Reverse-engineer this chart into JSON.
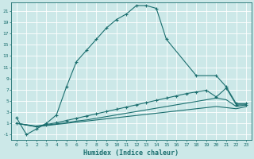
{
  "xlabel": "Humidex (Indice chaleur)",
  "bg_color": "#cce8e8",
  "grid_color": "#ffffff",
  "line_color": "#1a6e6e",
  "xlim": [
    -0.5,
    23.5
  ],
  "ylim": [
    -2,
    22.5
  ],
  "xticks": [
    0,
    1,
    2,
    3,
    4,
    5,
    6,
    7,
    8,
    9,
    10,
    11,
    12,
    13,
    14,
    15,
    16,
    17,
    18,
    19,
    20,
    21,
    22,
    23
  ],
  "yticks": [
    -1,
    1,
    3,
    5,
    7,
    9,
    11,
    13,
    15,
    17,
    19,
    21
  ],
  "line1_x": [
    0,
    1,
    2,
    3,
    4,
    5,
    6,
    7,
    8,
    9,
    10,
    11,
    12,
    13,
    14,
    15,
    18,
    20,
    21,
    22,
    23
  ],
  "line1_y": [
    2,
    -1,
    0,
    1,
    2.5,
    7.5,
    12,
    14,
    16,
    18,
    19.5,
    20.5,
    22,
    22,
    21.5,
    16,
    9.5,
    9.5,
    7.5,
    4.5,
    4.5
  ],
  "line1_markers": [
    0,
    1,
    2,
    3,
    4,
    5,
    6,
    7,
    8,
    9,
    10,
    11,
    12,
    13,
    14,
    15,
    18,
    20,
    21,
    22,
    23
  ],
  "line2_x": [
    0,
    2,
    3,
    4,
    5,
    6,
    7,
    8,
    9,
    10,
    11,
    12,
    13,
    14,
    15,
    16,
    17,
    18,
    19,
    20,
    21,
    22,
    23
  ],
  "line2_y": [
    1,
    0.5,
    0.8,
    1.1,
    1.5,
    1.9,
    2.3,
    2.7,
    3.1,
    3.5,
    3.9,
    4.3,
    4.7,
    5.1,
    5.5,
    5.9,
    6.3,
    6.6,
    6.9,
    5.7,
    7.3,
    4.3,
    4.3
  ],
  "line2_markers": [
    0,
    2,
    3,
    4,
    5,
    6,
    7,
    8,
    9,
    10,
    11,
    12,
    13,
    14,
    15,
    16,
    17,
    18,
    19,
    20,
    21,
    22,
    23
  ],
  "line3_x": [
    0,
    2,
    3,
    4,
    5,
    6,
    7,
    8,
    9,
    10,
    11,
    12,
    13,
    14,
    15,
    16,
    17,
    18,
    19,
    20,
    21,
    22,
    23
  ],
  "line3_y": [
    1,
    0.4,
    0.7,
    0.9,
    1.1,
    1.4,
    1.6,
    1.9,
    2.2,
    2.5,
    2.8,
    3.1,
    3.4,
    3.7,
    4.0,
    4.3,
    4.6,
    4.9,
    5.2,
    5.5,
    5.2,
    4.0,
    4.3
  ],
  "line4_x": [
    0,
    2,
    3,
    4,
    5,
    6,
    7,
    8,
    9,
    10,
    11,
    12,
    13,
    14,
    15,
    16,
    17,
    18,
    19,
    20,
    21,
    22,
    23
  ],
  "line4_y": [
    1,
    0.4,
    0.6,
    0.8,
    1.0,
    1.2,
    1.4,
    1.6,
    1.8,
    2.0,
    2.2,
    2.4,
    2.6,
    2.8,
    3.0,
    3.2,
    3.4,
    3.6,
    3.8,
    4.0,
    3.8,
    3.6,
    4.0
  ]
}
